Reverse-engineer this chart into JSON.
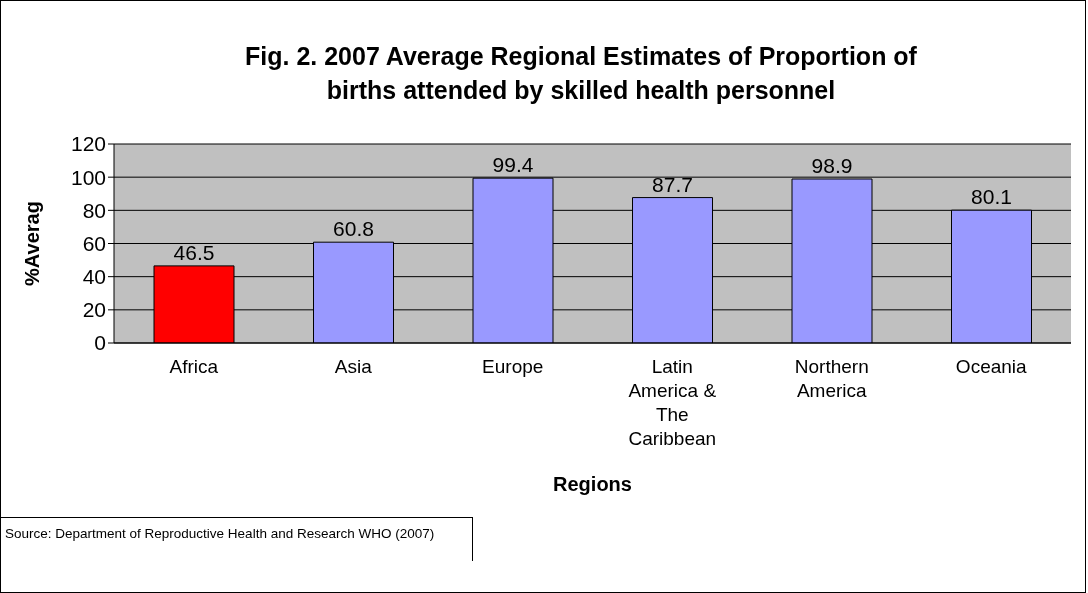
{
  "chart_data": {
    "type": "bar",
    "title": "Fig. 2. 2007 Average Regional Estimates of Proportion of births attended by skilled health personnel",
    "xlabel": "Regions",
    "ylabel": "%Averag",
    "categories": [
      "Africa",
      "Asia",
      "Europe",
      "Latin America & The Caribbean",
      "Northern America",
      "Oceania"
    ],
    "values": [
      46.5,
      60.8,
      99.4,
      87.7,
      98.9,
      80.1
    ],
    "colors": [
      "#ff0000",
      "#9999ff",
      "#9999ff",
      "#9999ff",
      "#9999ff",
      "#9999ff"
    ],
    "ylim": [
      0,
      120
    ],
    "yticks": [
      0,
      20,
      40,
      60,
      80,
      100,
      120
    ],
    "grid": "y",
    "data_labels": true,
    "annotations": [
      "Source: Department of Reproductive Health and Research WHO (2007)"
    ]
  }
}
